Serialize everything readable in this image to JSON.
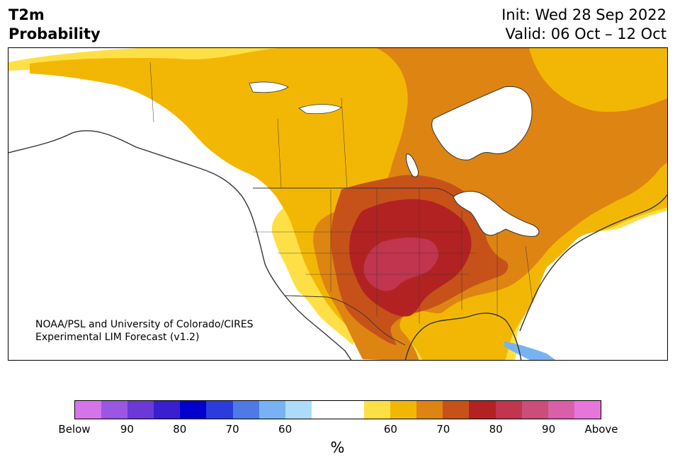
{
  "title": {
    "main_line1": "T2m",
    "main_line2": "Probability",
    "init": "Init: Wed 28 Sep 2022",
    "valid": "Valid: 06 Oct – 12 Oct"
  },
  "credit": {
    "line1": "NOAA/PSL and University of Colorado/CIRES",
    "line2": "Experimental LIM Forecast (v1.2)"
  },
  "colorbar": {
    "unit_label": "%",
    "colors": [
      "#d474ea",
      "#9b56e3",
      "#6a39d6",
      "#3a1fd1",
      "#0000cc",
      "#2a3ddb",
      "#4f79e6",
      "#77b3f2",
      "#acdcf9",
      "#ffffff",
      "#ffffff",
      "#fee046",
      "#f2b705",
      "#de8413",
      "#c65219",
      "#b22222",
      "#c1354f",
      "#cb4d7a",
      "#d95fa9",
      "#e776dc"
    ],
    "tick_labels": [
      "Below",
      "90",
      "80",
      "70",
      "60",
      "60",
      "70",
      "80",
      "90",
      "Above"
    ]
  },
  "map": {
    "region": "North America",
    "legend_categories": {
      "below": "Below",
      "above": "Above"
    },
    "zone_colors": {
      "ocean": "#ffffff",
      "p50": "#ffffff",
      "p60": "#fee046",
      "p65": "#f2b705",
      "p70": "#de8413",
      "p75": "#c65219",
      "p80": "#b22222",
      "p85": "#c1354f",
      "below60": "#77b3f2",
      "coast": "#333333"
    }
  }
}
